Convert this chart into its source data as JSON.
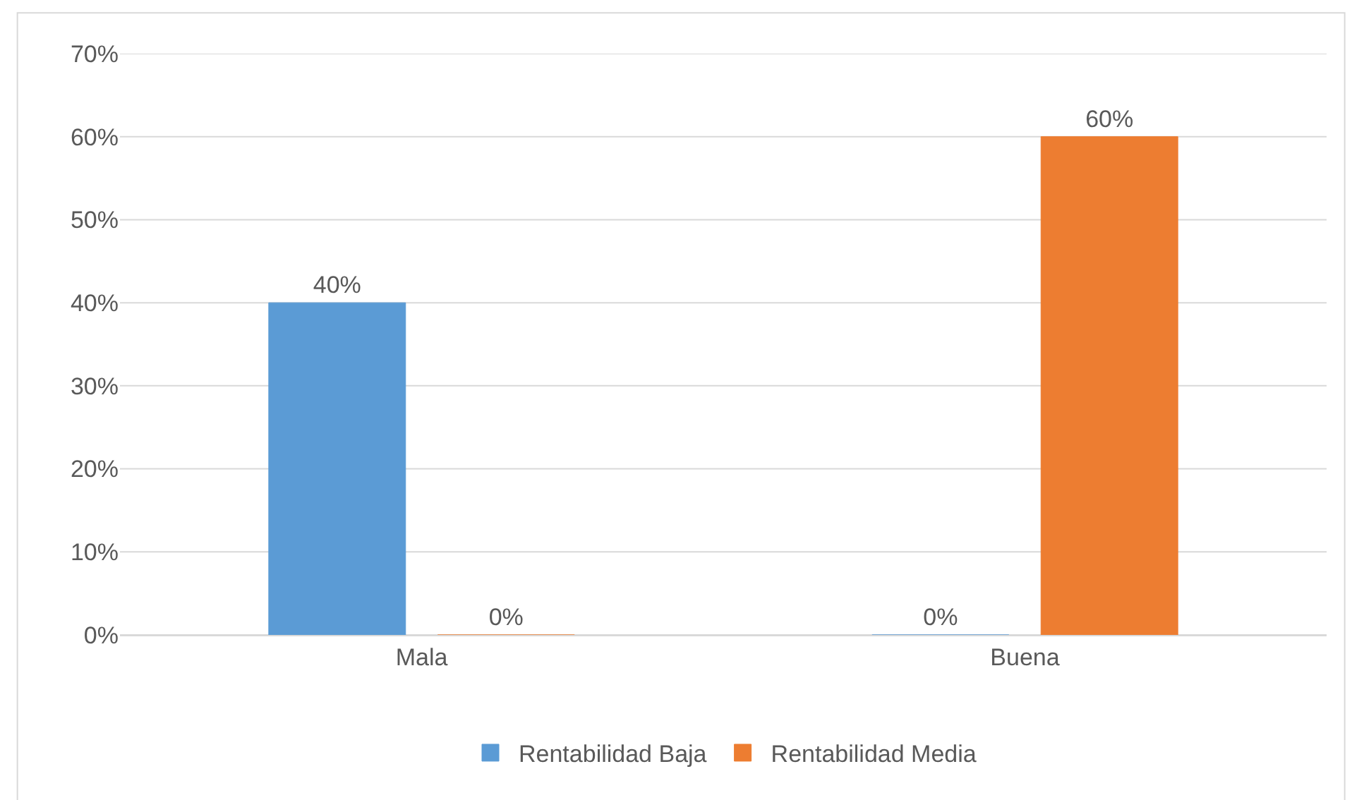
{
  "chart_data": {
    "type": "bar",
    "categories": [
      "Mala",
      "Buena"
    ],
    "series": [
      {
        "name": "Rentabilidad Baja",
        "color": "#5b9bd5",
        "values": [
          40,
          0
        ],
        "value_labels": [
          "40%",
          "0%"
        ]
      },
      {
        "name": "Rentabilidad Media",
        "color": "#ed7d31",
        "values": [
          0,
          60
        ],
        "value_labels": [
          "0%",
          "60%"
        ]
      }
    ],
    "ylim": [
      0,
      70
    ],
    "yticks": [
      {
        "value": 0,
        "label": "0%"
      },
      {
        "value": 10,
        "label": "10%"
      },
      {
        "value": 20,
        "label": "20%"
      },
      {
        "value": 30,
        "label": "30%"
      },
      {
        "value": 40,
        "label": "40%"
      },
      {
        "value": 50,
        "label": "50%"
      },
      {
        "value": 60,
        "label": "60%"
      },
      {
        "value": 70,
        "label": "70%"
      }
    ],
    "grid": "y",
    "legend": "bottom"
  }
}
